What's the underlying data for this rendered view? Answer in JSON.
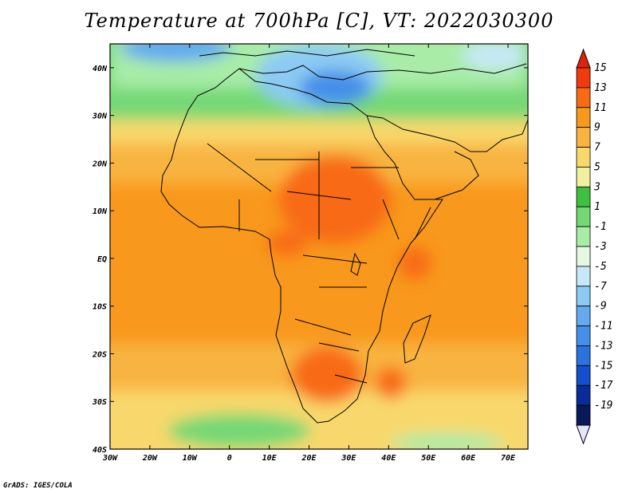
{
  "title": "Temperature at 700hPa [C], VT: 2022030300",
  "credit": "GrADS: IGES/COLA",
  "map": {
    "lon_range": [
      -30,
      75
    ],
    "lat_range": [
      -40,
      45
    ],
    "lon_labels": [
      "30W",
      "20W",
      "10W",
      "0",
      "10E",
      "20E",
      "30E",
      "40E",
      "50E",
      "60E",
      "70E"
    ],
    "lat_labels": [
      "40N",
      "30N",
      "20N",
      "10N",
      "EQ",
      "10S",
      "20S",
      "30S",
      "40S"
    ],
    "field": "Temperature at 700hPa",
    "units": "C"
  },
  "colorbar": {
    "levels": [
      "15",
      "13",
      "11",
      "9",
      "7",
      "5",
      "3",
      "1",
      "-1",
      "-3",
      "-5",
      "-7",
      "-9",
      "-11",
      "-13",
      "-15",
      "-17",
      "-19"
    ],
    "colors": [
      "#f03a10",
      "#f86a14",
      "#f8981c",
      "#f8b440",
      "#f8d86c",
      "#f0f0a0",
      "#40c040",
      "#74d874",
      "#a8eca8",
      "#e4f8e4",
      "#c8e8fa",
      "#8ccaf4",
      "#64aaee",
      "#4490e8",
      "#2a72de",
      "#1450cc",
      "#0a2c98",
      "#081858"
    ],
    "top_color": "#e02010",
    "bottom_color": "#e4e4fc"
  }
}
